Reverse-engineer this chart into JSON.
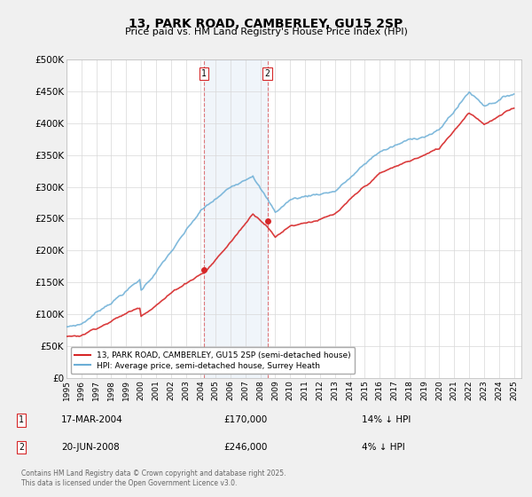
{
  "title": "13, PARK ROAD, CAMBERLEY, GU15 2SP",
  "subtitle": "Price paid vs. HM Land Registry's House Price Index (HPI)",
  "ylabel_ticks": [
    "£0",
    "£50K",
    "£100K",
    "£150K",
    "£200K",
    "£250K",
    "£300K",
    "£350K",
    "£400K",
    "£450K",
    "£500K"
  ],
  "ytick_vals": [
    0,
    50000,
    100000,
    150000,
    200000,
    250000,
    300000,
    350000,
    400000,
    450000,
    500000
  ],
  "ylim": [
    0,
    500000
  ],
  "xlim_start": 1995.0,
  "xlim_end": 2025.5,
  "hpi_color": "#6baed6",
  "price_color": "#d62728",
  "marker_color": "#d62728",
  "vline_color": "#d62728",
  "shade_color": "#c6dbef",
  "legend_label_price": "13, PARK ROAD, CAMBERLEY, GU15 2SP (semi-detached house)",
  "legend_label_hpi": "HPI: Average price, semi-detached house, Surrey Heath",
  "transaction1_date": "17-MAR-2004",
  "transaction1_price": "£170,000",
  "transaction1_hpi": "14% ↓ HPI",
  "transaction1_x": 2004.21,
  "transaction1_y": 170000,
  "transaction2_date": "20-JUN-2008",
  "transaction2_price": "£246,000",
  "transaction2_hpi": "4% ↓ HPI",
  "transaction2_x": 2008.47,
  "transaction2_y": 246000,
  "footnote": "Contains HM Land Registry data © Crown copyright and database right 2025.\nThis data is licensed under the Open Government Licence v3.0.",
  "background_color": "#f0f0f0",
  "plot_bg_color": "#ffffff",
  "hpi_linewidth": 1.2,
  "price_linewidth": 1.2
}
